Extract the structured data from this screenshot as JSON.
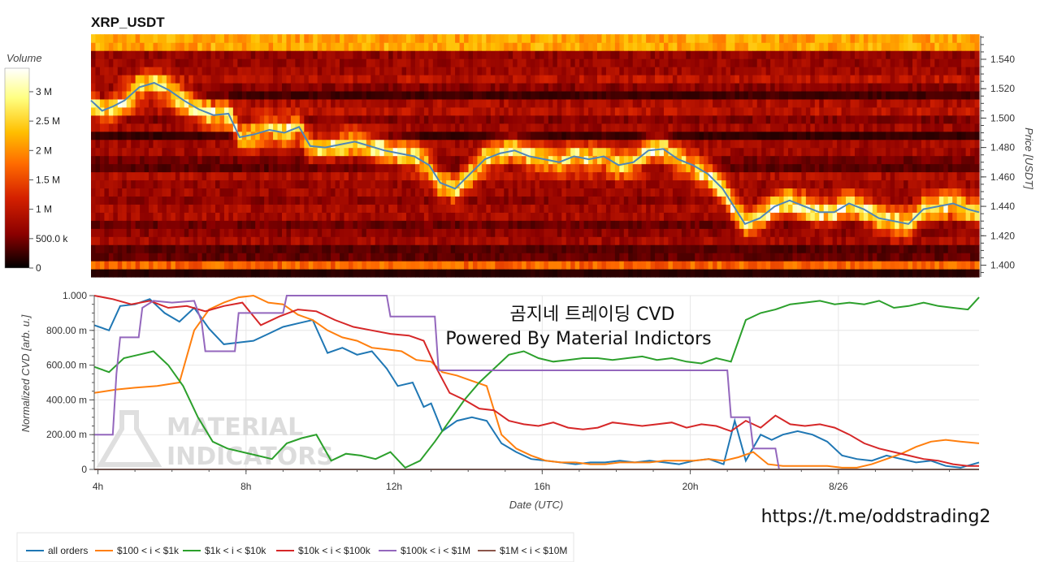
{
  "header": {
    "title": "XRP_USDT"
  },
  "colorbar": {
    "label": "Volume",
    "ticks": [
      "0",
      "500.0 k",
      "1 M",
      "1.5 M",
      "2 M",
      "2.5 M",
      "3 M"
    ]
  },
  "watermark": {
    "title_line1": "곰지네 트레이딩 CVD",
    "title_line2": "Powered By Material Indictors",
    "url": "https://t.me/oddstrading2",
    "logo_line1": "MATERIAL",
    "logo_line2": "INDICATORS"
  },
  "chart_data": [
    {
      "type": "heatmap",
      "title": "XRP_USDT",
      "ylabel": "Price [USDT]",
      "ylim": [
        1.392,
        1.556
      ],
      "price_ticks": [
        "1.400",
        "1.420",
        "1.440",
        "1.460",
        "1.480",
        "1.500",
        "1.520",
        "1.540"
      ],
      "volume_range": [
        0,
        3400000
      ],
      "colormap": [
        "#000000",
        "#8b0000",
        "#d42000",
        "#ff6a00",
        "#ffbf00",
        "#ffff80",
        "#ffffff"
      ],
      "price_line_color": "#4f86b8",
      "price_line": {
        "x_hours": [
          3.9,
          4.2,
          4.5,
          4.8,
          5.2,
          5.6,
          6.0,
          6.4,
          6.8,
          7.2,
          7.6,
          7.9,
          8.3,
          8.7,
          9.1,
          9.5,
          9.8,
          10.2,
          10.6,
          11.0,
          11.4,
          11.8,
          12.2,
          12.6,
          13.0,
          13.3,
          13.7,
          14.1,
          14.5,
          14.9,
          15.3,
          15.7,
          16.1,
          16.5,
          16.9,
          17.3,
          17.7,
          18.1,
          18.5,
          18.9,
          19.3,
          19.7,
          20.1,
          20.5,
          20.9,
          21.2,
          21.5,
          21.9,
          22.3,
          22.7,
          23.1,
          23.5,
          23.9,
          24.3,
          24.7,
          25.1,
          25.5,
          25.9,
          26.3,
          26.7,
          27.1,
          27.5,
          27.8
        ],
        "y_price": [
          1.512,
          1.505,
          1.508,
          1.512,
          1.521,
          1.524,
          1.519,
          1.512,
          1.506,
          1.502,
          1.503,
          1.487,
          1.489,
          1.492,
          1.49,
          1.494,
          1.481,
          1.48,
          1.482,
          1.484,
          1.481,
          1.478,
          1.476,
          1.474,
          1.468,
          1.456,
          1.452,
          1.462,
          1.472,
          1.476,
          1.478,
          1.474,
          1.472,
          1.47,
          1.474,
          1.472,
          1.474,
          1.468,
          1.47,
          1.478,
          1.479,
          1.472,
          1.468,
          1.462,
          1.452,
          1.44,
          1.428,
          1.432,
          1.44,
          1.444,
          1.44,
          1.436,
          1.436,
          1.442,
          1.438,
          1.432,
          1.43,
          1.428,
          1.438,
          1.44,
          1.442,
          1.438,
          1.436
        ]
      }
    },
    {
      "type": "line",
      "xlabel": "Date (UTC)",
      "ylabel": "Normalized CVD [arb. u.]",
      "xlim": [
        3.9,
        27.8
      ],
      "ylim": [
        0,
        1
      ],
      "x_ticks": [
        {
          "v": 4,
          "label": "4h"
        },
        {
          "v": 8,
          "label": "8h"
        },
        {
          "v": 12,
          "label": "12h"
        },
        {
          "v": 16,
          "label": "16h"
        },
        {
          "v": 20,
          "label": "20h"
        },
        {
          "v": 24,
          "label": "8/26"
        }
      ],
      "y_ticks": [
        {
          "v": 0,
          "label": "0"
        },
        {
          "v": 0.2,
          "label": "200.00 m"
        },
        {
          "v": 0.4,
          "label": "400.00 m"
        },
        {
          "v": 0.6,
          "label": "600.00 m"
        },
        {
          "v": 0.8,
          "label": "800.00 m"
        },
        {
          "v": 1.0,
          "label": "1.000"
        }
      ],
      "series": [
        {
          "name": "all orders",
          "color": "#1f77b4",
          "x": [
            3.9,
            4.3,
            4.6,
            5.0,
            5.4,
            5.8,
            6.2,
            6.6,
            7.0,
            7.4,
            7.8,
            8.2,
            8.6,
            9.0,
            9.4,
            9.8,
            10.2,
            10.6,
            11.0,
            11.4,
            11.8,
            12.1,
            12.5,
            12.8,
            13.0,
            13.3,
            13.7,
            14.1,
            14.5,
            14.9,
            15.3,
            15.7,
            16.1,
            16.5,
            16.9,
            17.3,
            17.7,
            18.1,
            18.5,
            18.9,
            19.3,
            19.7,
            20.1,
            20.5,
            20.9,
            21.2,
            21.5,
            21.9,
            22.2,
            22.5,
            22.9,
            23.3,
            23.7,
            24.1,
            24.5,
            24.9,
            25.3,
            25.7,
            26.1,
            26.5,
            26.9,
            27.3,
            27.8
          ],
          "y": [
            0.83,
            0.8,
            0.94,
            0.95,
            0.98,
            0.9,
            0.85,
            0.93,
            0.81,
            0.72,
            0.73,
            0.74,
            0.78,
            0.82,
            0.84,
            0.86,
            0.67,
            0.7,
            0.66,
            0.68,
            0.58,
            0.48,
            0.5,
            0.36,
            0.38,
            0.22,
            0.28,
            0.3,
            0.28,
            0.15,
            0.1,
            0.06,
            0.05,
            0.04,
            0.03,
            0.04,
            0.04,
            0.05,
            0.04,
            0.05,
            0.04,
            0.03,
            0.05,
            0.06,
            0.03,
            0.28,
            0.05,
            0.2,
            0.17,
            0.2,
            0.22,
            0.2,
            0.16,
            0.08,
            0.06,
            0.05,
            0.08,
            0.06,
            0.04,
            0.05,
            0.02,
            0.01,
            0.04
          ]
        },
        {
          "name": "$100 < i < $1k",
          "color": "#ff7f0e",
          "x": [
            3.9,
            4.5,
            5.0,
            5.6,
            6.2,
            6.6,
            7.0,
            7.4,
            7.8,
            8.2,
            8.6,
            9.0,
            9.4,
            9.8,
            10.2,
            10.6,
            11.0,
            11.4,
            11.8,
            12.2,
            12.6,
            13.0,
            13.3,
            13.7,
            14.1,
            14.5,
            14.9,
            15.3,
            15.7,
            16.1,
            16.5,
            16.9,
            17.3,
            17.7,
            18.1,
            18.5,
            18.9,
            19.3,
            19.7,
            20.1,
            20.5,
            20.9,
            21.3,
            21.7,
            22.1,
            22.5,
            22.9,
            23.3,
            23.7,
            24.1,
            24.5,
            24.9,
            25.3,
            25.7,
            26.1,
            26.5,
            26.9,
            27.3,
            27.8
          ],
          "y": [
            0.44,
            0.46,
            0.47,
            0.48,
            0.5,
            0.8,
            0.92,
            0.96,
            0.99,
            1.0,
            0.96,
            0.95,
            0.89,
            0.86,
            0.8,
            0.76,
            0.74,
            0.7,
            0.69,
            0.68,
            0.63,
            0.62,
            0.56,
            0.54,
            0.51,
            0.48,
            0.2,
            0.12,
            0.08,
            0.05,
            0.04,
            0.04,
            0.03,
            0.03,
            0.04,
            0.04,
            0.04,
            0.05,
            0.05,
            0.05,
            0.06,
            0.05,
            0.07,
            0.1,
            0.03,
            0.02,
            0.02,
            0.02,
            0.02,
            0.01,
            0.01,
            0.03,
            0.06,
            0.09,
            0.13,
            0.16,
            0.17,
            0.16,
            0.15
          ]
        },
        {
          "name": "$1k < i < $10k",
          "color": "#2ca02c",
          "x": [
            3.9,
            4.3,
            4.7,
            5.1,
            5.5,
            5.9,
            6.3,
            6.7,
            7.1,
            7.5,
            7.9,
            8.3,
            8.7,
            9.1,
            9.5,
            9.9,
            10.3,
            10.7,
            11.1,
            11.5,
            11.9,
            12.3,
            12.7,
            13.1,
            13.5,
            13.9,
            14.3,
            14.7,
            15.1,
            15.5,
            15.9,
            16.3,
            16.7,
            17.1,
            17.5,
            17.9,
            18.3,
            18.7,
            19.1,
            19.5,
            19.9,
            20.3,
            20.7,
            21.1,
            21.5,
            21.9,
            22.3,
            22.7,
            23.1,
            23.5,
            23.9,
            24.3,
            24.7,
            25.1,
            25.5,
            25.9,
            26.3,
            26.7,
            27.1,
            27.5,
            27.8
          ],
          "y": [
            0.59,
            0.56,
            0.64,
            0.66,
            0.68,
            0.6,
            0.48,
            0.3,
            0.16,
            0.12,
            0.1,
            0.08,
            0.06,
            0.15,
            0.18,
            0.2,
            0.05,
            0.09,
            0.08,
            0.06,
            0.1,
            0.01,
            0.05,
            0.16,
            0.28,
            0.4,
            0.5,
            0.58,
            0.66,
            0.68,
            0.64,
            0.62,
            0.63,
            0.64,
            0.64,
            0.63,
            0.64,
            0.65,
            0.63,
            0.64,
            0.62,
            0.61,
            0.64,
            0.62,
            0.86,
            0.9,
            0.92,
            0.95,
            0.96,
            0.97,
            0.95,
            0.96,
            0.95,
            0.97,
            0.93,
            0.94,
            0.96,
            0.94,
            0.93,
            0.92,
            0.99
          ]
        },
        {
          "name": "$10k < i < $100k",
          "color": "#d62728",
          "x": [
            3.9,
            4.4,
            4.9,
            5.4,
            5.9,
            6.4,
            6.9,
            7.4,
            7.9,
            8.4,
            8.9,
            9.4,
            9.9,
            10.4,
            10.9,
            11.4,
            11.9,
            12.4,
            12.8,
            13.1,
            13.5,
            13.9,
            14.3,
            14.7,
            15.1,
            15.5,
            15.9,
            16.3,
            16.7,
            17.1,
            17.5,
            17.9,
            18.3,
            18.7,
            19.1,
            19.5,
            19.9,
            20.3,
            20.7,
            21.1,
            21.5,
            21.9,
            22.3,
            22.7,
            23.1,
            23.5,
            23.9,
            24.3,
            24.7,
            25.1,
            25.5,
            25.9,
            26.3,
            26.7,
            27.1,
            27.5,
            27.8
          ],
          "y": [
            1.0,
            0.98,
            0.95,
            0.97,
            0.93,
            0.94,
            0.91,
            0.94,
            0.96,
            0.83,
            0.88,
            0.92,
            0.91,
            0.86,
            0.82,
            0.8,
            0.78,
            0.77,
            0.74,
            0.6,
            0.44,
            0.4,
            0.35,
            0.34,
            0.28,
            0.26,
            0.25,
            0.27,
            0.24,
            0.23,
            0.24,
            0.27,
            0.26,
            0.25,
            0.26,
            0.27,
            0.24,
            0.26,
            0.25,
            0.22,
            0.28,
            0.24,
            0.31,
            0.26,
            0.25,
            0.26,
            0.24,
            0.2,
            0.15,
            0.12,
            0.1,
            0.08,
            0.06,
            0.05,
            0.03,
            0.02,
            0.02
          ]
        },
        {
          "name": "$100k < i < $1M",
          "color": "#9467bd",
          "x": [
            3.9,
            4.4,
            4.5,
            4.6,
            5.1,
            5.2,
            5.5,
            6.0,
            6.6,
            6.8,
            6.9,
            7.7,
            7.8,
            9.0,
            9.1,
            11.8,
            11.9,
            13.1,
            13.2,
            21.0,
            21.1,
            21.6,
            21.7,
            22.3,
            22.4,
            27.8
          ],
          "y": [
            0.2,
            0.2,
            0.55,
            0.76,
            0.76,
            0.93,
            0.97,
            0.96,
            0.97,
            0.85,
            0.68,
            0.68,
            0.9,
            0.9,
            1.0,
            1.0,
            0.88,
            0.88,
            0.57,
            0.57,
            0.3,
            0.3,
            0.12,
            0.12,
            0.0,
            0.0
          ]
        },
        {
          "name": "$1M < i < $10M",
          "color": "#8c564b",
          "x": [
            3.9,
            27.8
          ],
          "y": [
            0.0,
            0.0
          ]
        }
      ]
    }
  ]
}
